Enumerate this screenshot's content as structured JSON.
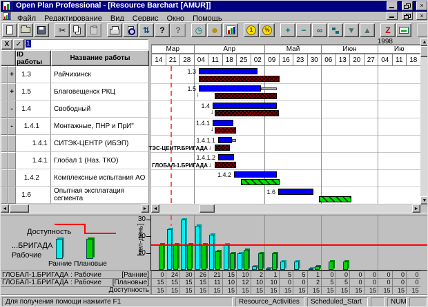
{
  "window": {
    "title": "Open Plan Professional - [Resource Barchart [AMUR]]"
  },
  "menu": {
    "items": [
      "Файл",
      "Редактирование",
      "Вид",
      "Сервис",
      "Окно",
      "Помощь"
    ]
  },
  "toolbar": {
    "groups": [
      [
        {
          "name": "new-icon",
          "type": "page"
        },
        {
          "name": "open-icon",
          "type": "folder"
        },
        {
          "name": "save-icon",
          "type": "disk"
        }
      ],
      [
        {
          "name": "cut-icon",
          "glyph": "✂",
          "color": "#202020"
        },
        {
          "name": "copy-icon",
          "type": "copy"
        },
        {
          "name": "paste-icon",
          "type": "clip",
          "disabled": true
        }
      ],
      [
        {
          "name": "print-icon",
          "type": "print"
        },
        {
          "name": "print-preview-icon",
          "type": "preview"
        },
        {
          "name": "sort-icon",
          "glyph": "⇅",
          "color": "#004080"
        },
        {
          "name": "help-icon",
          "glyph": "?",
          "color": "#000000"
        },
        {
          "name": "context-help-icon",
          "glyph": "?",
          "color": "#000000",
          "disabled": true
        }
      ],
      [
        {
          "name": "time-analysis-clock-icon",
          "glyph": "◷",
          "color": "#007070"
        },
        {
          "name": "resource-icon",
          "glyph": "☻",
          "color": "#b09000"
        },
        {
          "name": "histogram-icon",
          "type": "bars"
        }
      ],
      [
        {
          "name": "cost-icon",
          "type": "coin",
          "glyph": "1"
        },
        {
          "name": "percent-icon",
          "type": "coin",
          "glyph": "%"
        }
      ],
      [
        {
          "name": "add-icon",
          "glyph": "+",
          "color": "#007070"
        },
        {
          "name": "remove-icon",
          "glyph": "−",
          "color": "#007070"
        },
        {
          "name": "link-icon",
          "glyph": "∞",
          "color": "#007070"
        },
        {
          "name": "outline-icon",
          "type": "steps"
        },
        {
          "name": "move-down-icon",
          "glyph": "▼",
          "color": "#4d7070"
        },
        {
          "name": "move-up-icon",
          "glyph": "▲",
          "color": "#4d7070"
        }
      ],
      [
        {
          "name": "zoom-z-icon",
          "glyph": "Z",
          "color": "#cc0000"
        },
        {
          "name": "screen-icon",
          "type": "monitor"
        }
      ],
      [
        {
          "name": "extra-icon-1",
          "type": "blank",
          "disabled": true
        },
        {
          "name": "extra-icon-2",
          "type": "blank",
          "disabled": true
        }
      ]
    ]
  },
  "edit_bar": {
    "cancel": "X",
    "confirm": "✓",
    "value": "1"
  },
  "activity_table": {
    "columns": [
      "ID работы",
      "Название работы"
    ],
    "rows": [
      {
        "expand": "+",
        "id": "1.3",
        "indent": 0,
        "name": "Райчихинск"
      },
      {
        "expand": "+",
        "id": "1.5",
        "indent": 0,
        "name": "Благовещенск РКЦ"
      },
      {
        "expand": "-",
        "id": "1.4",
        "indent": 0,
        "name": "Свободный"
      },
      {
        "expand": "-",
        "id": "1.4.1",
        "indent": 1,
        "name": "Монтажные, ПНР и ПрИ\""
      },
      {
        "expand": "",
        "id": "1.4.1",
        "indent": 2,
        "name": "СИТЭК-ЦЕНТР (ИБЭП)"
      },
      {
        "expand": "",
        "id": "1.4.1",
        "indent": 2,
        "name": "Глобал 1 (Наз. ТКО)"
      },
      {
        "expand": "",
        "id": "1.4.2",
        "indent": 1,
        "name": "Комплексные испытания АО"
      },
      {
        "expand": "",
        "id": "1.6",
        "indent": 0,
        "name": "Опытная эксплатация сегмента"
      }
    ]
  },
  "timeline": {
    "year": "1998",
    "months": [
      {
        "label": "Мар",
        "weeks": [
          "14",
          "21",
          "28"
        ]
      },
      {
        "label": "Апр",
        "weeks": [
          "04",
          "11",
          "18",
          "25",
          "02"
        ]
      },
      {
        "label": "Май",
        "weeks": [
          "09",
          "16",
          "23",
          "30"
        ]
      },
      {
        "label": "Июн",
        "weeks": [
          "06",
          "13",
          "20",
          "27"
        ]
      },
      {
        "label": "Ию",
        "weeks": [
          "04",
          "11",
          "18"
        ]
      }
    ]
  },
  "gantt": {
    "now_x": 246,
    "rows": [
      {
        "label": "1.3",
        "early": [
          287,
          372
        ],
        "base": [
          287,
          404
        ],
        "base_color": "red"
      },
      {
        "label": "1.5",
        "early": [
          287,
          377
        ],
        "ext": 400,
        "arrow": 283,
        "base": [
          310,
          400
        ],
        "base_color": "red"
      },
      {
        "label": "1.4",
        "early": [
          307,
          400
        ],
        "arrow": 304,
        "base": [
          310,
          403
        ],
        "base_color": "red"
      },
      {
        "label": "1.4.1",
        "early": [
          307,
          337
        ],
        "arrow": 304,
        "base": [
          310,
          341
        ],
        "base_color": "red"
      },
      {
        "label": "1.4.1.1",
        "resource": "ТЭС-ЦЕНТР.БРИГАДА",
        "early": [
          315,
          335
        ],
        "ext": 341,
        "base": [
          310,
          332
        ],
        "base_color": "red"
      },
      {
        "label": "1.4.1.2",
        "resource": "ГЛОБАЛ-1.БРИГАДА",
        "early": [
          315,
          338
        ],
        "base": [
          310,
          341
        ],
        "base_color": "red"
      },
      {
        "label": "1.4.2",
        "early": [
          338,
          400
        ],
        "base": [
          348,
          404
        ],
        "base_color": "green"
      },
      {
        "label": "1.6",
        "early": [
          402,
          453
        ],
        "base": [
          461,
          508
        ],
        "base_color": "green"
      }
    ]
  },
  "legend": {
    "availability": "Доступность",
    "resource_line1": "...БРИГАДА",
    "resource_line2": "Рабочие",
    "early": "Ранние",
    "planned": "Плановые"
  },
  "chart_data": {
    "type": "bar",
    "title": "",
    "categories": [
      "14",
      "21",
      "28",
      "04",
      "11",
      "18",
      "25",
      "02",
      "09",
      "16",
      "23",
      "30",
      "06",
      "13",
      "20",
      "27",
      "04",
      "11",
      "18"
    ],
    "series": [
      {
        "name": "Ранние",
        "color": "#00f0f0",
        "values": [
          0,
          24,
          30,
          26,
          21,
          15,
          10,
          2,
          1,
          5,
          5,
          1,
          0,
          0,
          0,
          0,
          0,
          0,
          0
        ]
      },
      {
        "name": "Плановые",
        "color": "#00d400",
        "values": [
          15,
          15,
          15,
          15,
          11,
          10,
          12,
          10,
          10,
          0,
          0,
          2,
          5,
          5,
          0,
          0,
          0,
          0,
          0
        ]
      },
      {
        "name": "Доступность",
        "type": "line",
        "color": "#ff0000",
        "values": [
          15,
          15,
          15,
          15,
          15,
          15,
          15,
          15,
          15,
          15,
          15,
          15,
          15,
          15,
          15,
          15,
          15,
          15,
          15
        ]
      }
    ],
    "ylabel": "[чел-день]",
    "yticks": [
      10,
      20,
      30
    ],
    "ylim": [
      0,
      34
    ],
    "legend_position": "left",
    "grid": true
  },
  "resource_table": {
    "rows": [
      {
        "label": "ГЛОБАЛ-1.БРИГАДА : Рабочие",
        "bracket": "[Ранние]",
        "values": [
          0,
          24,
          30,
          26,
          21,
          15,
          10,
          2,
          1,
          5,
          5,
          1,
          0,
          0,
          0,
          0,
          0,
          0,
          0
        ]
      },
      {
        "label": "ГЛОБАЛ-1.БРИГАДА : Рабочие",
        "bracket": "[Плановые]",
        "values": [
          15,
          15,
          15,
          15,
          11,
          10,
          12,
          10,
          10,
          0,
          0,
          2,
          5,
          5,
          0,
          0,
          0,
          0,
          0
        ]
      },
      {
        "label": "",
        "bracket": "Доступность",
        "values": [
          15,
          15,
          15,
          15,
          15,
          15,
          15,
          15,
          15,
          15,
          15,
          15,
          15,
          15,
          15,
          15,
          15,
          15,
          15
        ]
      }
    ]
  },
  "status_bar": {
    "message": "Для получения помощи нажмите F1",
    "panels": [
      "Resource_Activities",
      "Scheduled_Start",
      "",
      "NUM",
      ""
    ]
  },
  "colors": {
    "titlebar": "#000080",
    "early_bar": "#0000f0",
    "baseline_red": "#8b0000",
    "baseline_green": "#00e000",
    "availability_line": "#ff0000",
    "early_hist": "#00f0f0",
    "planned_hist": "#00d400"
  }
}
